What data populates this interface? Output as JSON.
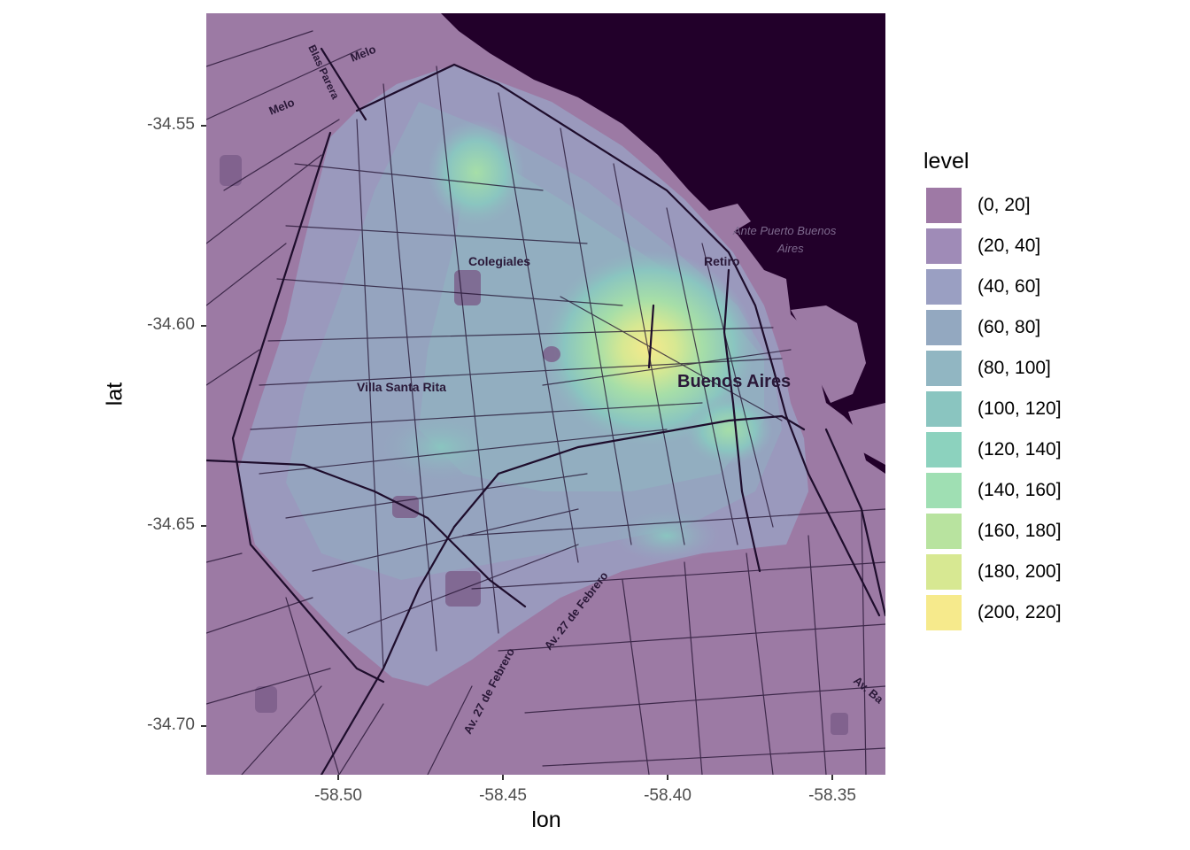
{
  "axes": {
    "xlabel": "lon",
    "ylabel": "lat",
    "x_ticks": [
      "-58.50",
      "-58.45",
      "-58.40",
      "-58.35"
    ],
    "y_ticks": [
      "-34.55",
      "-34.60",
      "-34.65",
      "-34.70"
    ]
  },
  "legend": {
    "title": "level",
    "items": [
      {
        "label": "(0, 20]",
        "color": "#9e79a5"
      },
      {
        "label": "(20, 40]",
        "color": "#9f8bb7"
      },
      {
        "label": "(40, 60]",
        "color": "#9a9fc2"
      },
      {
        "label": "(60, 80]",
        "color": "#93a8c0"
      },
      {
        "label": "(80, 100]",
        "color": "#91b6c2"
      },
      {
        "label": "(100, 120]",
        "color": "#8ac5c0"
      },
      {
        "label": "(120, 140]",
        "color": "#8cd2be"
      },
      {
        "label": "(140, 160]",
        "color": "#9fdfb3"
      },
      {
        "label": "(160, 180]",
        "color": "#b8e39f"
      },
      {
        "label": "(180, 200]",
        "color": "#d7e892"
      },
      {
        "label": "(200, 220]",
        "color": "#f6ea8c"
      }
    ]
  },
  "map_labels": {
    "melo_1": "Melo",
    "melo_2": "Melo",
    "blas_parera": "Blas Parera",
    "colegiales": "Colegiales",
    "retiro": "Retiro",
    "ante_puerto_1": "Ante Puerto Buenos",
    "ante_puerto_2": "Aires",
    "villa_santa_rita": "Villa Santa Rita",
    "buenos_aires": "Buenos Aires",
    "av_27_1": "Av. 27 de Febrero",
    "av_27_2": "Av. 27 de Febrero",
    "av_ba": "Av. Ba"
  },
  "colors": {
    "land": "#9c7aa4",
    "water": "#22002a",
    "road": "#1e0d2c"
  },
  "chart_data": {
    "type": "heatmap",
    "x_axis_label": "lon",
    "y_axis_label": "lat",
    "xlim": [
      -58.54,
      -58.334
    ],
    "ylim": [
      -34.713,
      -34.523
    ],
    "x_ticks": [
      -58.5,
      -58.45,
      -58.4,
      -58.35
    ],
    "y_ticks": [
      -34.55,
      -34.6,
      -34.65,
      -34.7
    ],
    "legend_title": "level",
    "levels": [
      "(0, 20]",
      "(20, 40]",
      "(40, 60]",
      "(60, 80]",
      "(80, 100]",
      "(100, 120]",
      "(120, 140]",
      "(140, 160]",
      "(160, 180]",
      "(180, 200]",
      "(200, 220]"
    ],
    "peak": {
      "lon": -58.405,
      "lat": -34.605,
      "level": "(200, 220]"
    }
  }
}
